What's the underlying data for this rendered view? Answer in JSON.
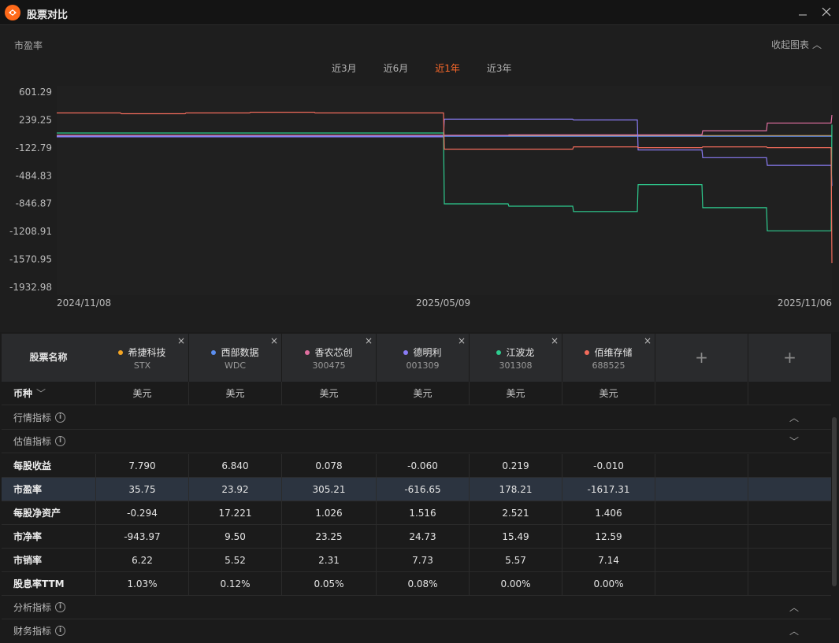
{
  "window": {
    "title": "股票对比",
    "minimize_icon": "minimize-icon",
    "close_icon": "close-icon"
  },
  "chart_header": {
    "metric": "市盈率",
    "collapse_label": "收起图表"
  },
  "range_tabs": [
    {
      "label": "近3月",
      "active": false
    },
    {
      "label": "近6月",
      "active": false
    },
    {
      "label": "近1年",
      "active": true
    },
    {
      "label": "近3年",
      "active": false
    }
  ],
  "chart_data": {
    "type": "line",
    "y_ticks": [
      "601.29",
      "239.25",
      "-122.79",
      "-484.83",
      "-846.87",
      "-1208.91",
      "-1570.95",
      "-1932.98"
    ],
    "ylim": [
      -1932.98,
      601.29
    ],
    "x_ticks": [
      "2024/11/08",
      "2025/05/09",
      "2025/11/06"
    ],
    "grid": false,
    "series": [
      {
        "name": "希捷科技",
        "color": "#f5a623",
        "values": [
          35,
          35,
          35,
          35,
          35,
          35,
          35,
          35,
          35,
          35,
          35,
          35,
          36
        ]
      },
      {
        "name": "西部数据",
        "color": "#5b8ef0",
        "values": [
          28,
          28,
          28,
          28,
          28,
          28,
          28,
          28,
          28,
          28,
          28,
          28,
          24
        ]
      },
      {
        "name": "香农芯创",
        "color": "#e06fa0",
        "values": [
          40,
          40,
          40,
          40,
          40,
          40,
          40,
          45,
          45,
          45,
          100,
          200,
          305
        ]
      },
      {
        "name": "德明利",
        "color": "#8a7cf5",
        "values": [
          20,
          20,
          20,
          20,
          20,
          20,
          250,
          250,
          240,
          -150,
          -250,
          -350,
          -617
        ]
      },
      {
        "name": "江波龙",
        "color": "#2ecc8f",
        "values": [
          70,
          70,
          70,
          70,
          70,
          70,
          -850,
          -880,
          -950,
          -600,
          -900,
          -1200,
          178
        ]
      },
      {
        "name": "佰维存储",
        "color": "#f26b5b",
        "values": [
          330,
          320,
          330,
          340,
          330,
          330,
          -140,
          -140,
          -110,
          -120,
          -110,
          -120,
          -1617
        ]
      }
    ]
  },
  "table": {
    "header_label": "股票名称",
    "stocks": [
      {
        "name": "希捷科技",
        "code": "STX",
        "color": "#f5a623",
        "remove": "×"
      },
      {
        "name": "西部数据",
        "code": "WDC",
        "color": "#5b8ef0",
        "remove": "×"
      },
      {
        "name": "香农芯创",
        "code": "300475",
        "color": "#e06fa0",
        "remove": "×"
      },
      {
        "name": "德明利",
        "code": "001309",
        "color": "#8a7cf5",
        "remove": "×"
      },
      {
        "name": "江波龙",
        "code": "301308",
        "color": "#2ecc8f",
        "remove": "×"
      },
      {
        "name": "佰维存储",
        "code": "688525",
        "color": "#f26b5b",
        "remove": "×"
      }
    ],
    "add_slots": [
      "+",
      "+"
    ],
    "currency_label": "币种",
    "currency_values": [
      "美元",
      "美元",
      "美元",
      "美元",
      "美元",
      "美元"
    ],
    "sections": {
      "market": "行情指标",
      "valuation": "估值指标",
      "analysis": "分析指标",
      "finance": "财务指标"
    },
    "rows": [
      {
        "label": "每股收益",
        "values": [
          "7.790",
          "6.840",
          "0.078",
          "-0.060",
          "0.219",
          "-0.010"
        ]
      },
      {
        "label": "市盈率",
        "values": [
          "35.75",
          "23.92",
          "305.21",
          "-616.65",
          "178.21",
          "-1617.31"
        ]
      },
      {
        "label": "每股净资产",
        "values": [
          "-0.294",
          "17.221",
          "1.026",
          "1.516",
          "2.521",
          "1.406"
        ]
      },
      {
        "label": "市净率",
        "values": [
          "-943.97",
          "9.50",
          "23.25",
          "24.73",
          "15.49",
          "12.59"
        ]
      },
      {
        "label": "市销率",
        "values": [
          "6.22",
          "5.52",
          "2.31",
          "7.73",
          "5.57",
          "7.14"
        ]
      },
      {
        "label": "股息率TTM",
        "values": [
          "1.03%",
          "0.12%",
          "0.05%",
          "0.08%",
          "0.00%",
          "0.00%"
        ]
      }
    ]
  }
}
